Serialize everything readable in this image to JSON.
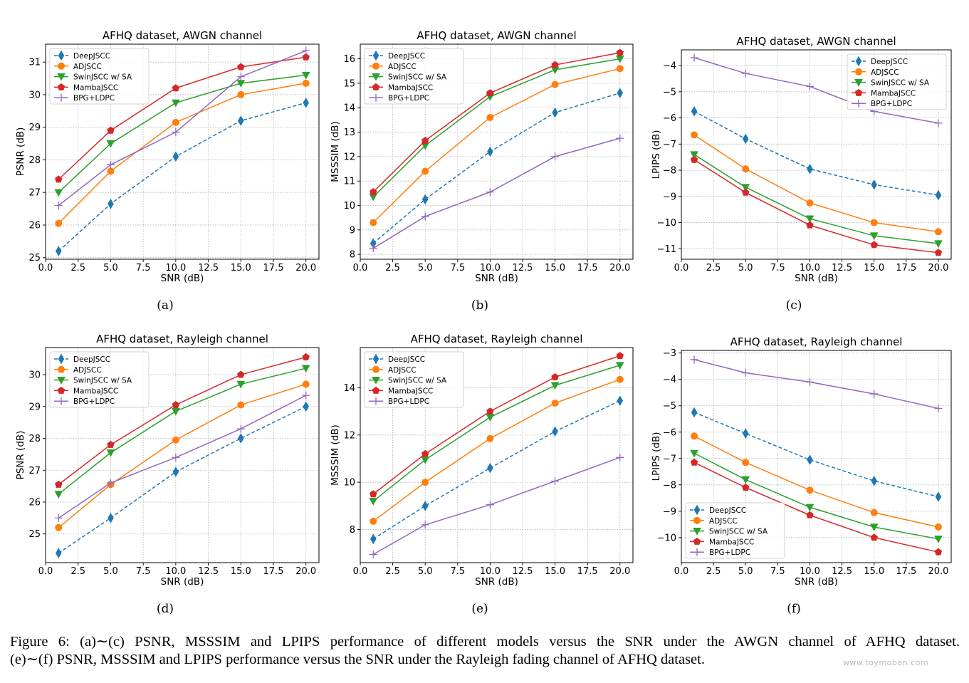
{
  "legend_labels": [
    "DeepJSCC",
    "ADJSCC",
    "SwinJSCC w/ SA",
    "MambaJSCC",
    "BPG+LDPC"
  ],
  "series_colors": [
    "#1f77b4",
    "#ff7f0e",
    "#2ca02c",
    "#d62728",
    "#9467bd"
  ],
  "series_markers": [
    "thin-diamond",
    "circle",
    "triangle-down",
    "pentagon",
    "plus"
  ],
  "chart_data": [
    {
      "type": "line",
      "sublabel": "(a)",
      "title": "AFHQ dataset, AWGN channel",
      "xlabel": "SNR (dB)",
      "ylabel": "PSNR (dB)",
      "xlim": [
        0,
        21
      ],
      "ylim": [
        24.95,
        31.55
      ],
      "xticks": [
        0,
        2.5,
        5,
        7.5,
        10,
        12.5,
        15,
        17.5,
        20
      ],
      "xtick_labels": [
        "0.0",
        "2.5",
        "5.0",
        "7.5",
        "10.0",
        "12.5",
        "15.0",
        "17.5",
        "20.0"
      ],
      "yticks": [
        25,
        26,
        27,
        28,
        29,
        30,
        31
      ],
      "ytick_labels": [
        "25",
        "26",
        "27",
        "28",
        "29",
        "30",
        "31"
      ],
      "legend_position": "upper-left",
      "grid": true,
      "x": [
        1,
        5,
        10,
        15,
        20
      ],
      "series": [
        {
          "name": "DeepJSCC",
          "values": [
            25.2,
            26.65,
            28.1,
            29.2,
            29.75
          ]
        },
        {
          "name": "ADJSCC",
          "values": [
            26.05,
            27.65,
            29.15,
            30.0,
            30.35
          ]
        },
        {
          "name": "SwinJSCC w/ SA",
          "values": [
            27.0,
            28.5,
            29.75,
            30.35,
            30.6
          ]
        },
        {
          "name": "MambaJSCC",
          "values": [
            27.4,
            28.9,
            30.2,
            30.85,
            31.15
          ]
        },
        {
          "name": "BPG+LDPC",
          "values": [
            26.6,
            27.85,
            28.85,
            30.55,
            31.35
          ]
        }
      ]
    },
    {
      "type": "line",
      "sublabel": "(b)",
      "title": "AFHQ dataset, AWGN channel",
      "xlabel": "SNR (dB)",
      "ylabel": "MSSSIM (dB)",
      "xlim": [
        0,
        21
      ],
      "ylim": [
        7.8,
        16.6
      ],
      "xticks": [
        0,
        2.5,
        5,
        7.5,
        10,
        12.5,
        15,
        17.5,
        20
      ],
      "xtick_labels": [
        "0.0",
        "2.5",
        "5.0",
        "7.5",
        "10.0",
        "12.5",
        "15.0",
        "17.5",
        "20.0"
      ],
      "yticks": [
        8,
        9,
        10,
        11,
        12,
        13,
        14,
        15,
        16
      ],
      "ytick_labels": [
        "8",
        "9",
        "10",
        "11",
        "12",
        "13",
        "14",
        "15",
        "16"
      ],
      "legend_position": "upper-left",
      "grid": true,
      "x": [
        1,
        5,
        10,
        15,
        20
      ],
      "series": [
        {
          "name": "DeepJSCC",
          "values": [
            8.45,
            10.25,
            12.2,
            13.8,
            14.6
          ]
        },
        {
          "name": "ADJSCC",
          "values": [
            9.3,
            11.4,
            13.6,
            14.95,
            15.6
          ]
        },
        {
          "name": "SwinJSCC w/ SA",
          "values": [
            10.35,
            12.45,
            14.45,
            15.55,
            16.0
          ]
        },
        {
          "name": "MambaJSCC",
          "values": [
            10.55,
            12.65,
            14.6,
            15.75,
            16.25
          ]
        },
        {
          "name": "BPG+LDPC",
          "values": [
            8.25,
            9.55,
            10.55,
            12.0,
            12.75
          ]
        }
      ]
    },
    {
      "type": "line",
      "sublabel": "(c)",
      "title": "AFHQ dataset, AWGN channel",
      "xlabel": "SNR (dB)",
      "ylabel": "LPIPS (dB)",
      "xlim": [
        0,
        21
      ],
      "ylim": [
        -11.4,
        -3.4
      ],
      "xticks": [
        0,
        2.5,
        5,
        7.5,
        10,
        12.5,
        15,
        17.5,
        20
      ],
      "xtick_labels": [
        "0.0",
        "2.5",
        "5.0",
        "7.5",
        "10.0",
        "12.5",
        "15.0",
        "17.5",
        "20.0"
      ],
      "yticks": [
        -11,
        -10,
        -9,
        -8,
        -7,
        -6,
        -5,
        -4
      ],
      "ytick_labels": [
        "−11",
        "−10",
        "−9",
        "−8",
        "−7",
        "−6",
        "−5",
        "−4"
      ],
      "legend_position": "upper-right",
      "grid": true,
      "x": [
        1,
        5,
        10,
        15,
        20
      ],
      "series": [
        {
          "name": "DeepJSCC",
          "values": [
            -5.75,
            -6.8,
            -7.95,
            -8.55,
            -8.95
          ]
        },
        {
          "name": "ADJSCC",
          "values": [
            -6.65,
            -7.95,
            -9.25,
            -10.0,
            -10.35
          ]
        },
        {
          "name": "SwinJSCC w/ SA",
          "values": [
            -7.4,
            -8.65,
            -9.85,
            -10.5,
            -10.8
          ]
        },
        {
          "name": "MambaJSCC",
          "values": [
            -7.6,
            -8.85,
            -10.1,
            -10.85,
            -11.15
          ]
        },
        {
          "name": "BPG+LDPC",
          "values": [
            -3.7,
            -4.3,
            -4.8,
            -5.75,
            -6.2
          ]
        }
      ]
    },
    {
      "type": "line",
      "sublabel": "(d)",
      "title": "AFHQ dataset, Rayleigh channel",
      "xlabel": "SNR (dB)",
      "ylabel": "PSNR (dB)",
      "xlim": [
        0,
        21
      ],
      "ylim": [
        24.1,
        30.85
      ],
      "xticks": [
        0,
        2.5,
        5,
        7.5,
        10,
        12.5,
        15,
        17.5,
        20
      ],
      "xtick_labels": [
        "0.0",
        "2.5",
        "5.0",
        "7.5",
        "10.0",
        "12.5",
        "15.0",
        "17.5",
        "20.0"
      ],
      "yticks": [
        25,
        26,
        27,
        28,
        29,
        30
      ],
      "ytick_labels": [
        "25",
        "26",
        "27",
        "28",
        "29",
        "30"
      ],
      "legend_position": "upper-left",
      "grid": true,
      "x": [
        1,
        5,
        10,
        15,
        20
      ],
      "series": [
        {
          "name": "DeepJSCC",
          "values": [
            24.4,
            25.5,
            26.95,
            28.0,
            29.0
          ]
        },
        {
          "name": "ADJSCC",
          "values": [
            25.2,
            26.55,
            27.95,
            29.05,
            29.7
          ]
        },
        {
          "name": "SwinJSCC w/ SA",
          "values": [
            26.25,
            27.55,
            28.85,
            29.7,
            30.2
          ]
        },
        {
          "name": "MambaJSCC",
          "values": [
            26.55,
            27.8,
            29.05,
            30.0,
            30.55
          ]
        },
        {
          "name": "BPG+LDPC",
          "values": [
            25.5,
            26.6,
            27.4,
            28.3,
            29.35
          ]
        }
      ]
    },
    {
      "type": "line",
      "sublabel": "(e)",
      "title": "AFHQ dataset, Rayleigh channel",
      "xlabel": "SNR (dB)",
      "ylabel": "MSSSIM (dB)",
      "xlim": [
        0,
        21
      ],
      "ylim": [
        6.6,
        15.7
      ],
      "xticks": [
        0,
        2.5,
        5,
        7.5,
        10,
        12.5,
        15,
        17.5,
        20
      ],
      "xtick_labels": [
        "0.0",
        "2.5",
        "5.0",
        "7.5",
        "10.0",
        "12.5",
        "15.0",
        "17.5",
        "20.0"
      ],
      "yticks": [
        8,
        10,
        12,
        14
      ],
      "ytick_labels": [
        "8",
        "10",
        "12",
        "14"
      ],
      "legend_position": "upper-left",
      "grid": true,
      "x": [
        1,
        5,
        10,
        15,
        20
      ],
      "series": [
        {
          "name": "DeepJSCC",
          "values": [
            7.6,
            9.0,
            10.6,
            12.15,
            13.45
          ]
        },
        {
          "name": "ADJSCC",
          "values": [
            8.35,
            10.0,
            11.85,
            13.35,
            14.35
          ]
        },
        {
          "name": "SwinJSCC w/ SA",
          "values": [
            9.2,
            10.95,
            12.75,
            14.1,
            14.95
          ]
        },
        {
          "name": "MambaJSCC",
          "values": [
            9.5,
            11.2,
            13.0,
            14.45,
            15.35
          ]
        },
        {
          "name": "BPG+LDPC",
          "values": [
            6.95,
            8.2,
            9.05,
            10.05,
            11.05
          ]
        }
      ]
    },
    {
      "type": "line",
      "sublabel": "(f)",
      "title": "AFHQ dataset, Rayleigh channel",
      "xlabel": "SNR (dB)",
      "ylabel": "LPIPS (dB)",
      "xlim": [
        0,
        21
      ],
      "ylim": [
        -10.95,
        -2.9
      ],
      "xticks": [
        0,
        2.5,
        5,
        7.5,
        10,
        12.5,
        15,
        17.5,
        20
      ],
      "xtick_labels": [
        "0.0",
        "2.5",
        "5.0",
        "7.5",
        "10.0",
        "12.5",
        "15.0",
        "17.5",
        "20.0"
      ],
      "yticks": [
        -10,
        -9,
        -8,
        -7,
        -6,
        -5,
        -4,
        -3
      ],
      "ytick_labels": [
        "−10",
        "−9",
        "−8",
        "−7",
        "−6",
        "−5",
        "−4",
        "−3"
      ],
      "legend_position": "lower-left",
      "grid": true,
      "x": [
        1,
        5,
        10,
        15,
        20
      ],
      "series": [
        {
          "name": "DeepJSCC",
          "values": [
            -5.25,
            -6.05,
            -7.05,
            -7.85,
            -8.45
          ]
        },
        {
          "name": "ADJSCC",
          "values": [
            -6.15,
            -7.15,
            -8.2,
            -9.05,
            -9.6
          ]
        },
        {
          "name": "SwinJSCC w/ SA",
          "values": [
            -6.8,
            -7.8,
            -8.85,
            -9.6,
            -10.05
          ]
        },
        {
          "name": "MambaJSCC",
          "values": [
            -7.15,
            -8.1,
            -9.15,
            -10.0,
            -10.55
          ]
        },
        {
          "name": "BPG+LDPC",
          "values": [
            -3.25,
            -3.75,
            -4.1,
            -4.55,
            -5.1
          ]
        }
      ]
    }
  ],
  "caption": {
    "line1": "Figure 6: (a)∼(c) PSNR, MSSSIM and LPIPS performance of different models versus the SNR under the AWGN channel of AFHQ dataset.",
    "line2": "(e)∼(f) PSNR, MSSSIM and LPIPS performance versus the SNR under the Rayleigh fading channel of AFHQ dataset."
  },
  "watermark": "www.toymoban.com"
}
